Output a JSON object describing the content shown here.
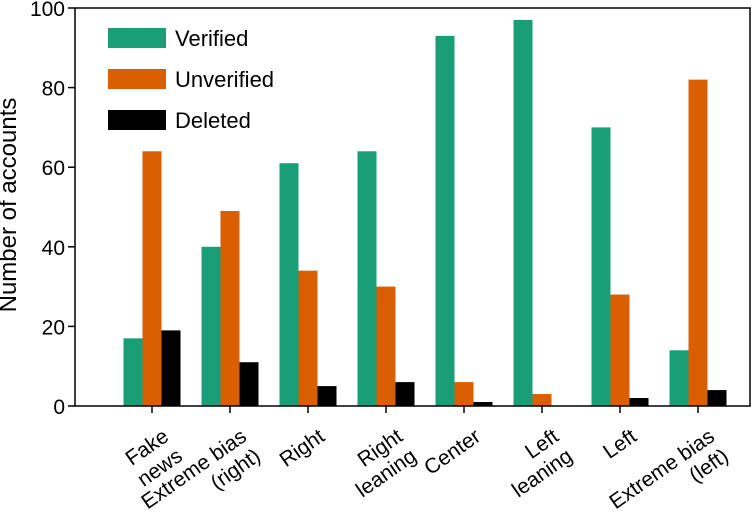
{
  "chart_data": {
    "type": "bar",
    "title": "",
    "xlabel": "",
    "ylabel": "Number of accounts",
    "ylim": [
      0,
      100
    ],
    "yticks": [
      "0",
      "20",
      "40",
      "60",
      "80",
      "100"
    ],
    "grid": false,
    "legend_position": "top-left",
    "categories": [
      [
        "Fake",
        "news"
      ],
      [
        "Extreme bias",
        "(right)"
      ],
      [
        "Right"
      ],
      [
        "Right",
        "leaning"
      ],
      [
        "Center"
      ],
      [
        "Left",
        "leaning"
      ],
      [
        "Left"
      ],
      [
        "Extreme bias",
        "(left)"
      ]
    ],
    "series": [
      {
        "name": "Verified",
        "color": "#1a9e77",
        "values": [
          17,
          40,
          61,
          64,
          93,
          97,
          70,
          14
        ]
      },
      {
        "name": "Unverified",
        "color": "#d95f02",
        "values": [
          64,
          49,
          34,
          30,
          6,
          3,
          28,
          82
        ]
      },
      {
        "name": "Deleted",
        "color": "#000000",
        "values": [
          19,
          11,
          5,
          6,
          1,
          0,
          2,
          4
        ]
      }
    ]
  }
}
